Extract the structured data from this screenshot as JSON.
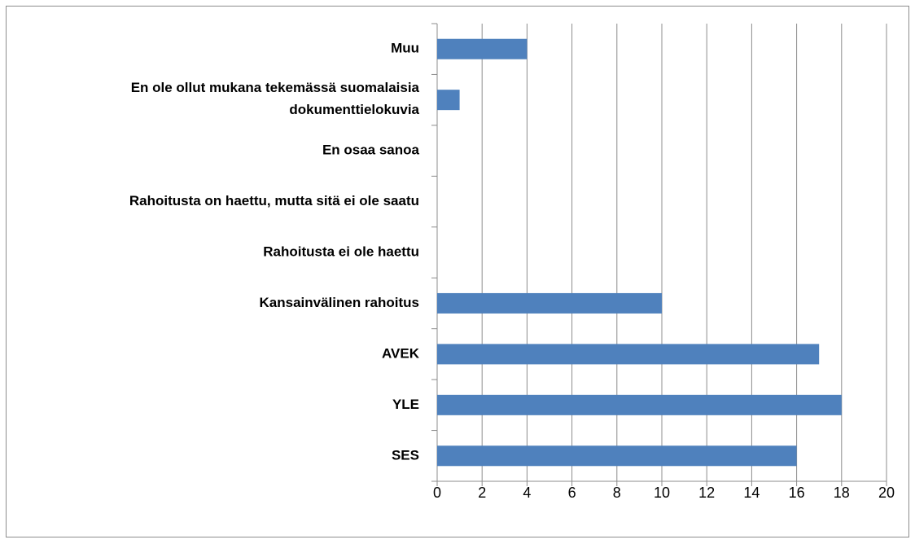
{
  "chart_data": {
    "type": "hbar",
    "categories": [
      "Muu",
      "En ole ollut mukana tekemässä suomalaisia dokumenttielokuvia",
      "En osaa sanoa",
      "Rahoitusta on haettu, mutta sitä ei ole saatu",
      "Rahoitusta ei ole haettu",
      "Kansainvälinen rahoitus",
      "AVEK",
      "YLE",
      "SES"
    ],
    "values": [
      4,
      1,
      0,
      0,
      0,
      10,
      17,
      18,
      16
    ],
    "color": "#4f81bd",
    "xlim": [
      0,
      20
    ],
    "xticks": [
      0,
      2,
      4,
      6,
      8,
      10,
      12,
      14,
      16,
      18,
      20
    ],
    "grid": true
  }
}
